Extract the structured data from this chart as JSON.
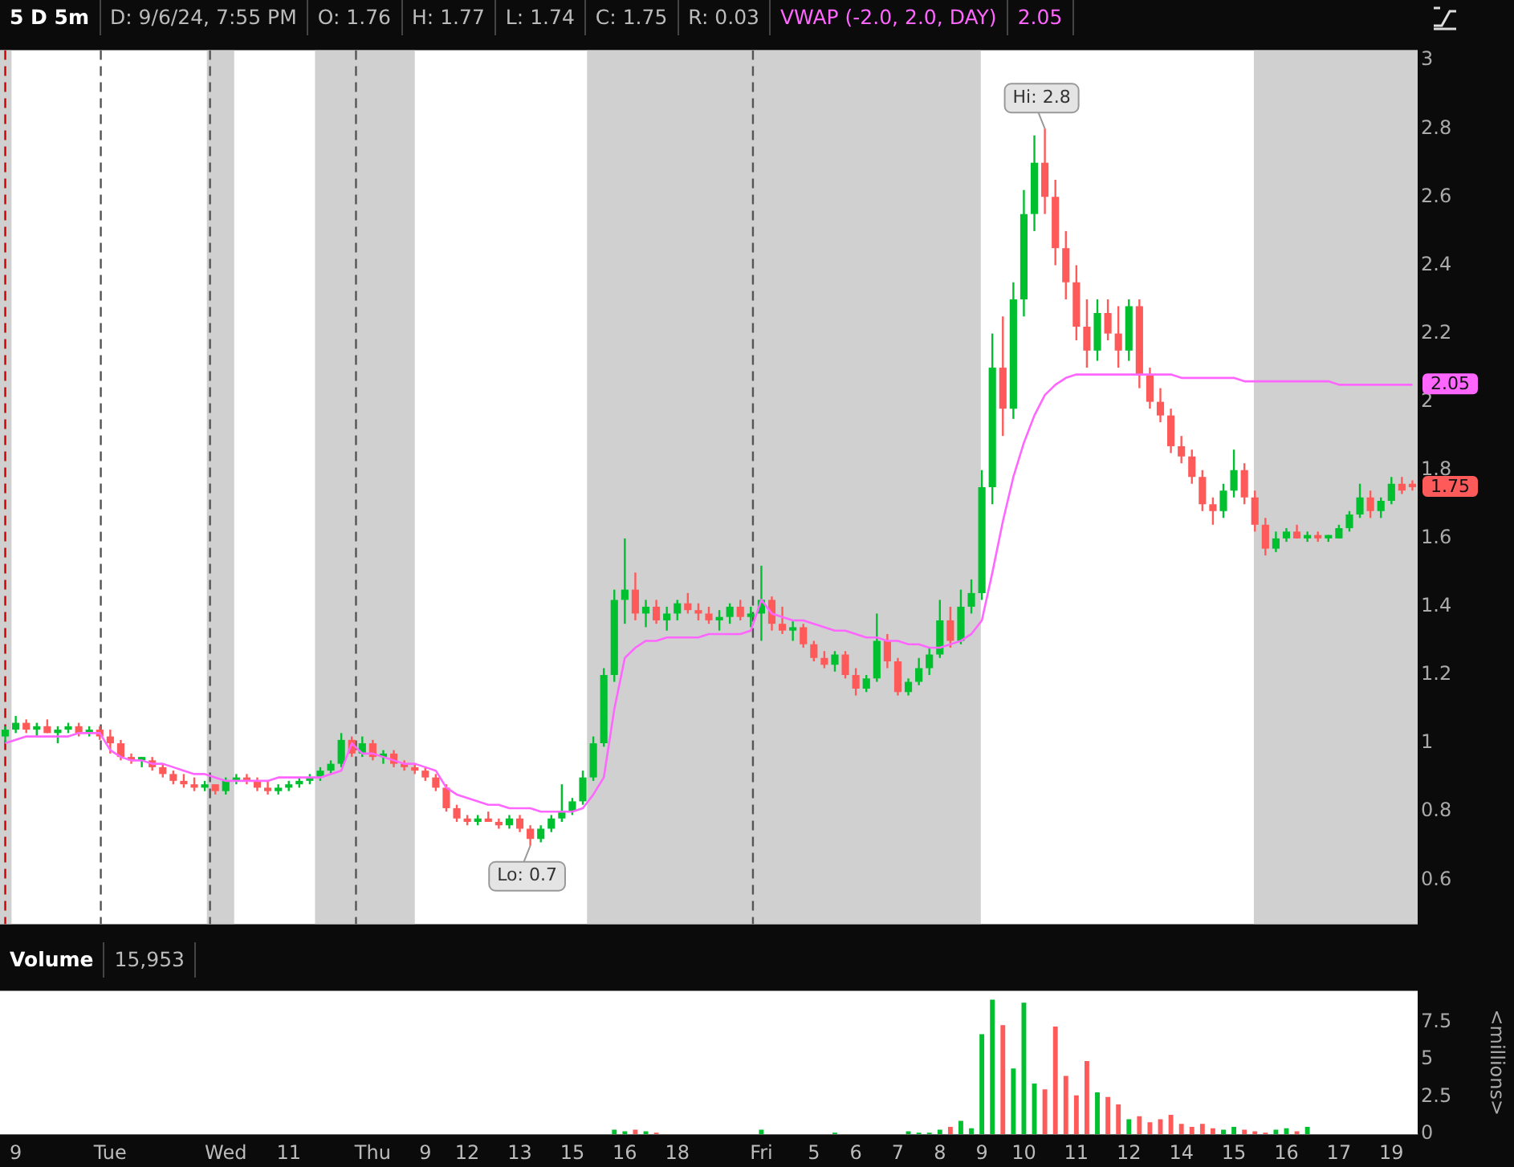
{
  "chart_data": [
    {
      "type": "candlestick",
      "title": "5 D 5m",
      "annotations": [
        "D: 9/6/24, 7:55 PM",
        "O: 1.76",
        "H: 1.77",
        "L: 1.74",
        "C: 1.75",
        "R: 0.03",
        "2.05",
        {
          "text": "Hi: 2.8",
          "y": 2.8
        },
        {
          "text": "Lo: 0.7",
          "y": 0.7
        },
        {
          "text": "2.05",
          "y": 2.05
        },
        {
          "text": "1.75",
          "y": 1.75
        }
      ],
      "categories": [
        null,
        null,
        null,
        null,
        null,
        null,
        null,
        null,
        null,
        null,
        null,
        null,
        null,
        null,
        null,
        null,
        null,
        null,
        null,
        null,
        null,
        null,
        null,
        null,
        null,
        null,
        null,
        null,
        null,
        null,
        null,
        null,
        null,
        null,
        null,
        null,
        null,
        null,
        null,
        null,
        null,
        null,
        null,
        null,
        null,
        null,
        null,
        null,
        null,
        null,
        null,
        null,
        null,
        null,
        null,
        null,
        null,
        null,
        null,
        null,
        null,
        null,
        null,
        null,
        null,
        null,
        null,
        null,
        null,
        null,
        null,
        null,
        null,
        null,
        null,
        null,
        null,
        null,
        null,
        null,
        null,
        null,
        null,
        null,
        null,
        null,
        null,
        null,
        null,
        null,
        null,
        null,
        null,
        null,
        null,
        null,
        null,
        null,
        null,
        null,
        null,
        null,
        null,
        null,
        null,
        null,
        null,
        null,
        null,
        null,
        null,
        null,
        null,
        null,
        null,
        null,
        null,
        null,
        null,
        null,
        null,
        null,
        null,
        null,
        null,
        null,
        null,
        null,
        null,
        null,
        null,
        null,
        null,
        null,
        null
      ],
      "ohlc": [
        [
          1.02,
          1.05,
          1.0,
          1.04
        ],
        [
          1.04,
          1.08,
          1.03,
          1.06
        ],
        [
          1.06,
          1.07,
          1.03,
          1.04
        ],
        [
          1.04,
          1.06,
          1.02,
          1.05
        ],
        [
          1.05,
          1.07,
          1.03,
          1.03
        ],
        [
          1.03,
          1.05,
          1.0,
          1.04
        ],
        [
          1.04,
          1.06,
          1.03,
          1.05
        ],
        [
          1.05,
          1.06,
          1.02,
          1.03
        ],
        [
          1.03,
          1.05,
          1.02,
          1.04
        ],
        [
          1.04,
          1.05,
          1.01,
          1.02
        ],
        [
          1.02,
          1.04,
          0.97,
          1.0
        ],
        [
          1.0,
          1.01,
          0.95,
          0.96
        ],
        [
          0.96,
          0.97,
          0.94,
          0.95
        ],
        [
          0.95,
          0.96,
          0.93,
          0.96
        ],
        [
          0.95,
          0.96,
          0.92,
          0.93
        ],
        [
          0.93,
          0.94,
          0.9,
          0.91
        ],
        [
          0.91,
          0.92,
          0.88,
          0.89
        ],
        [
          0.89,
          0.91,
          0.87,
          0.88
        ],
        [
          0.88,
          0.9,
          0.86,
          0.87
        ],
        [
          0.87,
          0.89,
          0.86,
          0.88
        ],
        [
          0.88,
          0.88,
          0.85,
          0.86
        ],
        [
          0.86,
          0.9,
          0.85,
          0.89
        ],
        [
          0.89,
          0.91,
          0.88,
          0.9
        ],
        [
          0.9,
          0.91,
          0.88,
          0.89
        ],
        [
          0.89,
          0.9,
          0.86,
          0.87
        ],
        [
          0.87,
          0.89,
          0.85,
          0.86
        ],
        [
          0.86,
          0.88,
          0.85,
          0.87
        ],
        [
          0.87,
          0.89,
          0.86,
          0.88
        ],
        [
          0.88,
          0.9,
          0.87,
          0.89
        ],
        [
          0.89,
          0.91,
          0.88,
          0.9
        ],
        [
          0.9,
          0.93,
          0.89,
          0.92
        ],
        [
          0.92,
          0.95,
          0.91,
          0.94
        ],
        [
          0.94,
          1.03,
          0.93,
          1.01
        ],
        [
          1.01,
          1.02,
          0.96,
          0.97
        ],
        [
          0.97,
          1.02,
          0.96,
          1.0
        ],
        [
          1.0,
          1.01,
          0.95,
          0.96
        ],
        [
          0.96,
          0.98,
          0.94,
          0.97
        ],
        [
          0.97,
          0.98,
          0.93,
          0.94
        ],
        [
          0.94,
          0.95,
          0.92,
          0.93
        ],
        [
          0.93,
          0.94,
          0.91,
          0.92
        ],
        [
          0.92,
          0.93,
          0.89,
          0.9
        ],
        [
          0.9,
          0.91,
          0.86,
          0.87
        ],
        [
          0.87,
          0.88,
          0.8,
          0.81
        ],
        [
          0.81,
          0.82,
          0.77,
          0.78
        ],
        [
          0.78,
          0.79,
          0.76,
          0.77
        ],
        [
          0.77,
          0.79,
          0.76,
          0.78
        ],
        [
          0.78,
          0.8,
          0.77,
          0.77
        ],
        [
          0.77,
          0.78,
          0.75,
          0.76
        ],
        [
          0.76,
          0.79,
          0.75,
          0.78
        ],
        [
          0.78,
          0.79,
          0.74,
          0.75
        ],
        [
          0.75,
          0.76,
          0.7,
          0.72
        ],
        [
          0.72,
          0.76,
          0.71,
          0.75
        ],
        [
          0.75,
          0.79,
          0.74,
          0.78
        ],
        [
          0.78,
          0.88,
          0.77,
          0.8
        ],
        [
          0.8,
          0.84,
          0.79,
          0.83
        ],
        [
          0.83,
          0.92,
          0.82,
          0.9
        ],
        [
          0.9,
          1.02,
          0.89,
          1.0
        ],
        [
          1.0,
          1.22,
          0.99,
          1.2
        ],
        [
          1.2,
          1.45,
          1.18,
          1.42
        ],
        [
          1.42,
          1.6,
          1.35,
          1.45
        ],
        [
          1.45,
          1.5,
          1.36,
          1.38
        ],
        [
          1.38,
          1.42,
          1.34,
          1.4
        ],
        [
          1.4,
          1.42,
          1.35,
          1.36
        ],
        [
          1.36,
          1.4,
          1.33,
          1.38
        ],
        [
          1.38,
          1.42,
          1.36,
          1.41
        ],
        [
          1.41,
          1.44,
          1.38,
          1.39
        ],
        [
          1.39,
          1.41,
          1.36,
          1.38
        ],
        [
          1.38,
          1.4,
          1.35,
          1.36
        ],
        [
          1.36,
          1.39,
          1.33,
          1.37
        ],
        [
          1.37,
          1.41,
          1.35,
          1.4
        ],
        [
          1.4,
          1.42,
          1.36,
          1.37
        ],
        [
          1.37,
          1.4,
          1.34,
          1.38
        ],
        [
          1.38,
          1.52,
          1.3,
          1.42
        ],
        [
          1.42,
          1.43,
          1.33,
          1.35
        ],
        [
          1.35,
          1.4,
          1.32,
          1.33
        ],
        [
          1.33,
          1.36,
          1.3,
          1.34
        ],
        [
          1.34,
          1.35,
          1.28,
          1.29
        ],
        [
          1.29,
          1.3,
          1.24,
          1.25
        ],
        [
          1.25,
          1.27,
          1.22,
          1.23
        ],
        [
          1.23,
          1.27,
          1.21,
          1.26
        ],
        [
          1.26,
          1.27,
          1.19,
          1.2
        ],
        [
          1.2,
          1.22,
          1.14,
          1.16
        ],
        [
          1.16,
          1.2,
          1.15,
          1.19
        ],
        [
          1.19,
          1.38,
          1.18,
          1.3
        ],
        [
          1.3,
          1.32,
          1.22,
          1.24
        ],
        [
          1.24,
          1.25,
          1.14,
          1.15
        ],
        [
          1.15,
          1.19,
          1.14,
          1.18
        ],
        [
          1.18,
          1.25,
          1.17,
          1.22
        ],
        [
          1.22,
          1.28,
          1.2,
          1.26
        ],
        [
          1.26,
          1.42,
          1.25,
          1.36
        ],
        [
          1.36,
          1.4,
          1.28,
          1.3
        ],
        [
          1.3,
          1.45,
          1.29,
          1.4
        ],
        [
          1.4,
          1.48,
          1.38,
          1.44
        ],
        [
          1.44,
          1.8,
          1.42,
          1.75
        ],
        [
          1.75,
          2.2,
          1.7,
          2.1
        ],
        [
          2.1,
          2.25,
          1.9,
          1.98
        ],
        [
          1.98,
          2.35,
          1.95,
          2.3
        ],
        [
          2.3,
          2.62,
          2.25,
          2.55
        ],
        [
          2.55,
          2.78,
          2.5,
          2.7
        ],
        [
          2.7,
          2.8,
          2.55,
          2.6
        ],
        [
          2.6,
          2.65,
          2.4,
          2.45
        ],
        [
          2.45,
          2.5,
          2.3,
          2.35
        ],
        [
          2.35,
          2.4,
          2.18,
          2.22
        ],
        [
          2.22,
          2.3,
          2.1,
          2.15
        ],
        [
          2.15,
          2.3,
          2.12,
          2.26
        ],
        [
          2.26,
          2.3,
          2.18,
          2.2
        ],
        [
          2.2,
          2.28,
          2.1,
          2.15
        ],
        [
          2.15,
          2.3,
          2.12,
          2.28
        ],
        [
          2.28,
          2.3,
          2.04,
          2.08
        ],
        [
          2.08,
          2.1,
          1.98,
          2.0
        ],
        [
          2.0,
          2.04,
          1.94,
          1.96
        ],
        [
          1.96,
          1.98,
          1.85,
          1.87
        ],
        [
          1.87,
          1.9,
          1.82,
          1.84
        ],
        [
          1.84,
          1.86,
          1.76,
          1.78
        ],
        [
          1.78,
          1.8,
          1.68,
          1.7
        ],
        [
          1.7,
          1.72,
          1.64,
          1.68
        ],
        [
          1.68,
          1.76,
          1.66,
          1.74
        ],
        [
          1.74,
          1.86,
          1.72,
          1.8
        ],
        [
          1.8,
          1.82,
          1.7,
          1.72
        ],
        [
          1.72,
          1.74,
          1.62,
          1.64
        ],
        [
          1.64,
          1.66,
          1.55,
          1.57
        ],
        [
          1.57,
          1.62,
          1.56,
          1.6
        ],
        [
          1.6,
          1.63,
          1.59,
          1.62
        ],
        [
          1.62,
          1.64,
          1.6,
          1.6
        ],
        [
          1.6,
          1.62,
          1.59,
          1.61
        ],
        [
          1.61,
          1.62,
          1.59,
          1.6
        ],
        [
          1.6,
          1.61,
          1.59,
          1.61
        ],
        [
          1.6,
          1.64,
          1.6,
          1.63
        ],
        [
          1.63,
          1.68,
          1.62,
          1.67
        ],
        [
          1.67,
          1.76,
          1.66,
          1.72
        ],
        [
          1.72,
          1.74,
          1.66,
          1.68
        ],
        [
          1.68,
          1.72,
          1.66,
          1.71
        ],
        [
          1.71,
          1.78,
          1.7,
          1.76
        ],
        [
          1.76,
          1.78,
          1.73,
          1.74
        ],
        [
          1.76,
          1.77,
          1.74,
          1.75
        ]
      ],
      "colors": [
        "#00c030",
        "#00c030",
        "#ff5a5a",
        "#00c030",
        "#ff5a5a",
        "#00c030",
        "#00c030",
        "#ff5a5a",
        "#00c030",
        "#ff5a5a",
        "#ff5a5a",
        "#ff5a5a",
        "#ff5a5a",
        "#00c030",
        "#ff5a5a",
        "#ff5a5a",
        "#ff5a5a",
        "#ff5a5a",
        "#ff5a5a",
        "#00c030",
        "#ff5a5a",
        "#00c030",
        "#00c030",
        "#ff5a5a",
        "#ff5a5a",
        "#ff5a5a",
        "#00c030",
        "#00c030",
        "#00c030",
        "#00c030",
        "#00c030",
        "#00c030",
        "#00c030",
        "#ff5a5a",
        "#00c030",
        "#ff5a5a",
        "#00c030",
        "#ff5a5a",
        "#ff5a5a",
        "#ff5a5a",
        "#ff5a5a",
        "#ff5a5a",
        "#ff5a5a",
        "#ff5a5a",
        "#ff5a5a",
        "#00c030",
        "#ff5a5a",
        "#ff5a5a",
        "#00c030",
        "#ff5a5a",
        "#ff5a5a",
        "#00c030",
        "#00c030",
        "#00c030",
        "#00c030",
        "#00c030",
        "#00c030",
        "#00c030",
        "#00c030",
        "#00c030",
        "#ff5a5a",
        "#00c030",
        "#ff5a5a",
        "#00c030",
        "#00c030",
        "#ff5a5a",
        "#ff5a5a",
        "#ff5a5a",
        "#00c030",
        "#00c030",
        "#ff5a5a",
        "#00c030",
        "#00c030",
        "#ff5a5a",
        "#ff5a5a",
        "#00c030",
        "#ff5a5a",
        "#ff5a5a",
        "#ff5a5a",
        "#00c030",
        "#ff5a5a",
        "#ff5a5a",
        "#00c030",
        "#00c030",
        "#ff5a5a",
        "#ff5a5a",
        "#00c030",
        "#00c030",
        "#00c030",
        "#00c030",
        "#ff5a5a",
        "#00c030",
        "#00c030",
        "#00c030",
        "#00c030",
        "#ff5a5a",
        "#00c030",
        "#00c030",
        "#00c030",
        "#ff5a5a",
        "#ff5a5a",
        "#ff5a5a",
        "#ff5a5a",
        "#ff5a5a",
        "#00c030",
        "#ff5a5a",
        "#ff5a5a",
        "#00c030",
        "#ff5a5a",
        "#ff5a5a",
        "#ff5a5a",
        "#ff5a5a",
        "#ff5a5a",
        "#ff5a5a",
        "#ff5a5a",
        "#ff5a5a",
        "#00c030",
        "#00c030",
        "#ff5a5a",
        "#ff5a5a",
        "#ff5a5a",
        "#00c030",
        "#00c030",
        "#ff5a5a",
        "#00c030",
        "#ff5a5a",
        "#00c030",
        "#00c030",
        "#00c030",
        "#00c030",
        "#ff5a5a",
        "#00c030",
        "#00c030",
        "#ff5a5a",
        "#ff5a5a"
      ],
      "series": [
        {
          "name": "VWAP (-2.0, 2.0, DAY)",
          "type": "line",
          "color": "#ff66ff",
          "values": [
            1.0,
            1.01,
            1.02,
            1.02,
            1.02,
            1.02,
            1.02,
            1.03,
            1.03,
            1.03,
            0.98,
            0.96,
            0.95,
            0.95,
            0.94,
            0.94,
            0.93,
            0.92,
            0.91,
            0.91,
            0.9,
            0.89,
            0.89,
            0.89,
            0.89,
            0.89,
            0.9,
            0.9,
            0.9,
            0.9,
            0.9,
            0.91,
            0.92,
            1.0,
            0.97,
            0.97,
            0.96,
            0.95,
            0.94,
            0.94,
            0.93,
            0.92,
            0.87,
            0.85,
            0.84,
            0.83,
            0.82,
            0.82,
            0.81,
            0.81,
            0.81,
            0.8,
            0.8,
            0.8,
            0.8,
            0.81,
            0.85,
            0.9,
            1.1,
            1.25,
            1.28,
            1.3,
            1.3,
            1.31,
            1.31,
            1.31,
            1.31,
            1.32,
            1.32,
            1.32,
            1.32,
            1.33,
            1.42,
            1.38,
            1.37,
            1.36,
            1.36,
            1.35,
            1.34,
            1.33,
            1.33,
            1.32,
            1.31,
            1.31,
            1.3,
            1.3,
            1.29,
            1.29,
            1.28,
            1.28,
            1.29,
            1.3,
            1.32,
            1.36,
            1.5,
            1.65,
            1.78,
            1.88,
            1.96,
            2.02,
            2.05,
            2.07,
            2.08,
            2.08,
            2.08,
            2.08,
            2.08,
            2.08,
            2.08,
            2.08,
            2.08,
            2.08,
            2.07,
            2.07,
            2.07,
            2.07,
            2.07,
            2.07,
            2.06,
            2.06,
            2.06,
            2.06,
            2.06,
            2.06,
            2.06,
            2.06,
            2.06,
            2.05,
            2.05,
            2.05,
            2.05,
            2.05,
            2.05,
            2.05,
            2.05
          ]
        }
      ],
      "ylim": [
        0.47,
        3.03
      ],
      "yticks": [
        0.6,
        0.8,
        1,
        1.2,
        1.4,
        1.6,
        1.8,
        2,
        2.2,
        2.4,
        2.6,
        2.8,
        3
      ],
      "legend": "top",
      "grid": false,
      "tick_labels": "y"
    },
    {
      "type": "bar",
      "title": "Volume",
      "annotations": [
        "15,953"
      ],
      "ylabel": "<millions>",
      "categories": [
        null,
        "9",
        null,
        null,
        null,
        null,
        null,
        null,
        null,
        null,
        "Tue",
        null,
        null,
        null,
        null,
        null,
        null,
        null,
        null,
        null,
        null,
        "Wed",
        null,
        null,
        null,
        null,
        null,
        "11",
        null,
        null,
        null,
        null,
        null,
        null,
        null,
        "Thu",
        null,
        null,
        null,
        null,
        "9",
        null,
        null,
        null,
        "12",
        null,
        null,
        null,
        null,
        "13",
        null,
        null,
        null,
        null,
        "15",
        null,
        null,
        null,
        null,
        "16",
        null,
        null,
        null,
        null,
        "18",
        null,
        null,
        null,
        null,
        null,
        null,
        null,
        "Fri",
        null,
        null,
        null,
        null,
        "5",
        null,
        null,
        null,
        "6",
        null,
        null,
        null,
        "7",
        null,
        null,
        null,
        "8",
        null,
        null,
        null,
        "9",
        null,
        null,
        null,
        "10",
        null,
        null,
        null,
        null,
        "11",
        null,
        null,
        null,
        null,
        "12",
        null,
        null,
        null,
        null,
        "14",
        null,
        null,
        null,
        null,
        "15",
        null,
        null,
        null,
        null,
        "16",
        null,
        null,
        null,
        null,
        "17",
        null,
        null,
        null,
        null,
        "19",
        null,
        null
      ],
      "values": [
        0,
        0,
        0,
        0,
        0,
        0,
        0,
        0,
        0,
        0,
        0,
        0,
        0,
        0,
        0,
        0,
        0,
        0,
        0,
        0,
        0,
        0,
        0,
        0,
        0,
        0,
        0,
        0,
        0,
        0,
        0,
        0,
        0,
        0,
        0,
        0,
        0,
        0,
        0,
        0,
        0,
        0,
        0,
        0,
        0,
        0,
        0,
        0,
        0,
        0,
        0,
        0,
        0,
        0,
        0,
        0,
        0,
        0,
        0.3,
        0.2,
        0.3,
        0.2,
        0.1,
        0,
        0,
        0,
        0,
        0,
        0,
        0,
        0,
        0,
        0.3,
        0,
        0,
        0,
        0,
        0,
        0,
        0.1,
        0,
        0,
        0,
        0,
        0,
        0,
        0.2,
        0.1,
        0.1,
        0.3,
        0.5,
        0.9,
        0.4,
        6.7,
        9,
        7.3,
        4.4,
        8.8,
        3.4,
        3.0,
        7.2,
        3.9,
        2.6,
        4.9,
        2.8,
        2.5,
        2.0,
        1.0,
        1.2,
        0.8,
        1.0,
        1.3,
        0.7,
        0.5,
        0.7,
        0.4,
        0.3,
        0.5,
        0.3,
        0.2,
        0.1,
        0.3,
        0.4,
        0.2,
        0.5,
        0,
        0,
        0,
        0,
        0,
        0,
        0,
        0,
        0,
        0
      ],
      "colors": [
        "#00c030",
        "#00c030",
        "#ff5a5a",
        "#00c030",
        "#ff5a5a",
        "#00c030",
        "#00c030",
        "#ff5a5a",
        "#00c030",
        "#ff5a5a",
        "#ff5a5a",
        "#ff5a5a",
        "#ff5a5a",
        "#00c030",
        "#ff5a5a",
        "#ff5a5a",
        "#ff5a5a",
        "#ff5a5a",
        "#ff5a5a",
        "#00c030",
        "#ff5a5a",
        "#00c030",
        "#00c030",
        "#ff5a5a",
        "#ff5a5a",
        "#ff5a5a",
        "#00c030",
        "#00c030",
        "#00c030",
        "#00c030",
        "#00c030",
        "#00c030",
        "#00c030",
        "#ff5a5a",
        "#00c030",
        "#ff5a5a",
        "#00c030",
        "#ff5a5a",
        "#ff5a5a",
        "#ff5a5a",
        "#ff5a5a",
        "#ff5a5a",
        "#ff5a5a",
        "#ff5a5a",
        "#ff5a5a",
        "#00c030",
        "#ff5a5a",
        "#ff5a5a",
        "#00c030",
        "#ff5a5a",
        "#ff5a5a",
        "#00c030",
        "#00c030",
        "#00c030",
        "#00c030",
        "#00c030",
        "#00c030",
        "#00c030",
        "#00c030",
        "#00c030",
        "#ff5a5a",
        "#00c030",
        "#ff5a5a",
        "#00c030",
        "#00c030",
        "#ff5a5a",
        "#ff5a5a",
        "#ff5a5a",
        "#00c030",
        "#00c030",
        "#ff5a5a",
        "#00c030",
        "#00c030",
        "#ff5a5a",
        "#ff5a5a",
        "#00c030",
        "#ff5a5a",
        "#ff5a5a",
        "#ff5a5a",
        "#00c030",
        "#ff5a5a",
        "#ff5a5a",
        "#00c030",
        "#00c030",
        "#ff5a5a",
        "#ff5a5a",
        "#00c030",
        "#00c030",
        "#00c030",
        "#00c030",
        "#ff5a5a",
        "#00c030",
        "#00c030",
        "#00c030",
        "#00c030",
        "#ff5a5a",
        "#00c030",
        "#00c030",
        "#00c030",
        "#ff5a5a",
        "#ff5a5a",
        "#ff5a5a",
        "#ff5a5a",
        "#ff5a5a",
        "#00c030",
        "#ff5a5a",
        "#ff5a5a",
        "#00c030",
        "#ff5a5a",
        "#ff5a5a",
        "#ff5a5a",
        "#ff5a5a",
        "#ff5a5a",
        "#ff5a5a",
        "#ff5a5a",
        "#ff5a5a",
        "#00c030",
        "#00c030",
        "#ff5a5a",
        "#ff5a5a",
        "#ff5a5a",
        "#00c030",
        "#00c030",
        "#ff5a5a",
        "#00c030",
        "#ff5a5a",
        "#00c030",
        "#00c030",
        "#00c030",
        "#00c030",
        "#ff5a5a",
        "#00c030",
        "#00c030",
        "#ff5a5a",
        "#ff5a5a"
      ],
      "ylim": [
        0,
        9.6
      ],
      "yticks": [
        0,
        2.5,
        5,
        7.5
      ],
      "grid": false
    }
  ]
}
